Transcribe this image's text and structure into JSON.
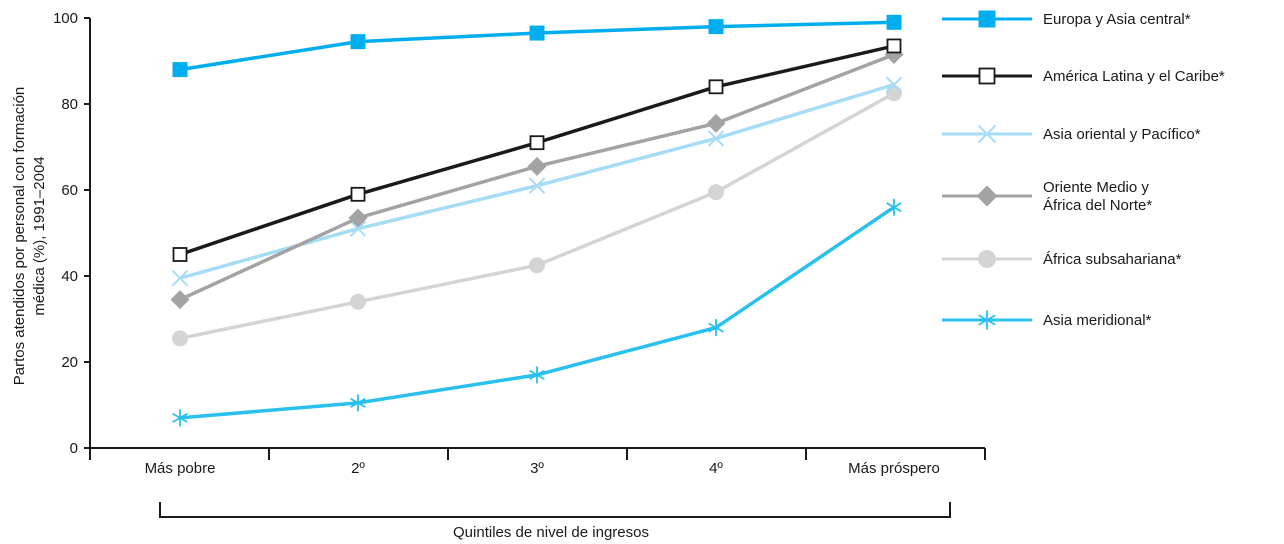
{
  "chart_data": {
    "type": "line",
    "categories": [
      "Más pobre",
      "2º",
      "3º",
      "4º",
      "Más próspero"
    ],
    "xlabel": "Quintiles de nivel de ingresos",
    "ylabel_lines": [
      "Partos atendidos por personal con formación",
      "médica (%), 1991–2004"
    ],
    "ylim": [
      0,
      100
    ],
    "yticks": [
      0,
      20,
      40,
      60,
      80,
      100
    ],
    "grid": false,
    "legend_position": "right",
    "series": [
      {
        "name": "Europa y Asia central*",
        "label_lines": [
          "Europa y Asia central*"
        ],
        "values": [
          88,
          94.5,
          96.5,
          98,
          99
        ],
        "color": "#00aeef",
        "marker": "filled-square"
      },
      {
        "name": "América Latina y el Caribe*",
        "label_lines": [
          "América Latina y el Caribe*"
        ],
        "values": [
          45,
          59,
          71,
          84,
          93.5
        ],
        "color": "#1a1a1a",
        "marker": "open-square"
      },
      {
        "name": "Asia oriental y Pacífico*",
        "label_lines": [
          "Asia oriental y Pacífico*"
        ],
        "values": [
          39.5,
          51,
          61,
          72,
          84.5
        ],
        "color": "#a6dcf5",
        "marker": "x"
      },
      {
        "name": "Oriente Medio y África del Norte*",
        "label_lines": [
          "Oriente Medio y",
          "África del Norte*"
        ],
        "values": [
          34.5,
          53.5,
          65.5,
          75.5,
          91.5
        ],
        "color": "#a3a3a3",
        "marker": "diamond"
      },
      {
        "name": "África subsahariana*",
        "label_lines": [
          "África subsahariana*"
        ],
        "values": [
          25.5,
          34,
          42.5,
          59.5,
          82.5
        ],
        "color": "#d4d4d4",
        "marker": "circle"
      },
      {
        "name": "Asia meridional*",
        "label_lines": [
          "Asia meridional*"
        ],
        "values": [
          7,
          10.5,
          17,
          28,
          56
        ],
        "color": "#29c0ee",
        "marker": "asterisk"
      }
    ]
  }
}
